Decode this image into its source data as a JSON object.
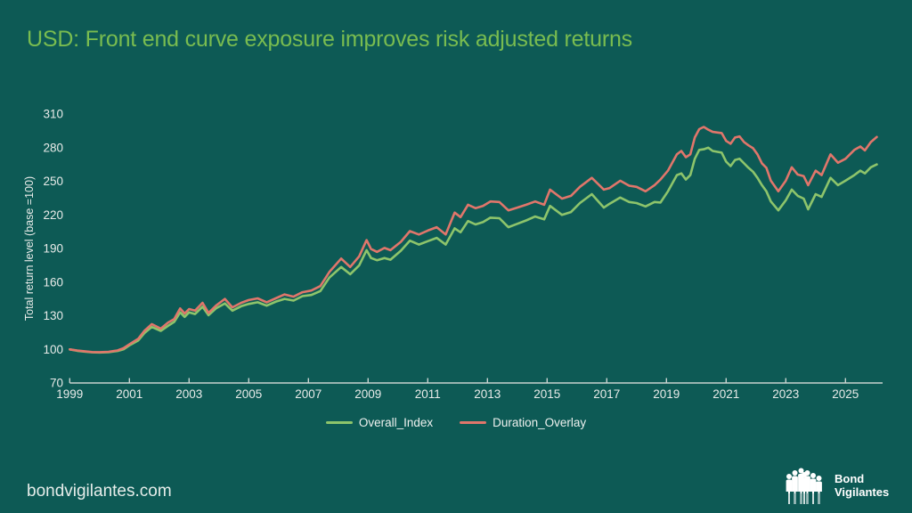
{
  "title": "USD: Front end curve exposure improves risk adjusted returns",
  "colors": {
    "background": "#0d5a55",
    "title": "#79bc50",
    "overall_index": "#8dc46b",
    "duration_overlay": "#e0766b",
    "axis_text": "#e8ebe9",
    "axis_line": "#c8d2cf",
    "logo": "#ffffff"
  },
  "footer": {
    "site": "bondvigilantes.com",
    "logo_icon": "people-crowd-icon",
    "logo_line1": "Bond",
    "logo_line2": "Vigilantes"
  },
  "chart_data": {
    "type": "line",
    "title": "",
    "xlabel": "",
    "ylabel": "Total return level (base =100)",
    "ylim": [
      70,
      310
    ],
    "xlim": [
      1999,
      2026.25
    ],
    "grid": false,
    "legend_position": "bottom",
    "yticks": [
      70,
      100,
      130,
      160,
      190,
      220,
      250,
      280,
      310
    ],
    "xticks": [
      1999,
      2001,
      2003,
      2005,
      2007,
      2009,
      2011,
      2013,
      2015,
      2017,
      2019,
      2021,
      2023,
      2025
    ],
    "x": [
      1999.0,
      1999.25,
      1999.5,
      1999.75,
      2000.0,
      2000.3,
      2000.6,
      2000.8,
      2001.0,
      2001.3,
      2001.5,
      2001.75,
      2002.05,
      2002.3,
      2002.5,
      2002.7,
      2002.85,
      2003.0,
      2003.2,
      2003.45,
      2003.65,
      2003.9,
      2004.2,
      2004.45,
      2004.75,
      2005.0,
      2005.3,
      2005.6,
      2005.9,
      2006.2,
      2006.5,
      2006.8,
      2007.1,
      2007.4,
      2007.7,
      2008.1,
      2008.4,
      2008.7,
      2008.95,
      2009.1,
      2009.3,
      2009.55,
      2009.75,
      2010.1,
      2010.4,
      2010.7,
      2011.0,
      2011.3,
      2011.6,
      2011.9,
      2012.1,
      2012.35,
      2012.6,
      2012.85,
      2013.1,
      2013.4,
      2013.7,
      2014.0,
      2014.3,
      2014.6,
      2014.9,
      2015.1,
      2015.5,
      2015.8,
      2016.1,
      2016.5,
      2016.9,
      2017.1,
      2017.45,
      2017.75,
      2018.0,
      2018.3,
      2018.6,
      2018.8,
      2019.05,
      2019.35,
      2019.5,
      2019.65,
      2019.8,
      2019.95,
      2020.1,
      2020.25,
      2020.4,
      2020.55,
      2020.85,
      2021.0,
      2021.15,
      2021.3,
      2021.45,
      2021.6,
      2021.75,
      2021.9,
      2022.05,
      2022.2,
      2022.35,
      2022.5,
      2022.75,
      2023.0,
      2023.2,
      2023.4,
      2023.6,
      2023.75,
      2024.0,
      2024.2,
      2024.5,
      2024.75,
      2025.0,
      2025.3,
      2025.5,
      2025.65,
      2025.85,
      2026.05
    ],
    "series": [
      {
        "name": "Overall_Index",
        "color": "#8dc46b",
        "values": [
          100,
          98.7,
          98,
          97.3,
          97.2,
          97.5,
          98.5,
          100,
          103.5,
          108,
          114.5,
          120,
          116.5,
          121,
          124.5,
          133,
          129,
          133,
          131.5,
          138,
          130.5,
          136.5,
          141,
          134.5,
          138.5,
          140.5,
          142,
          139,
          142.5,
          145,
          143.5,
          147.5,
          148.5,
          152,
          164,
          173.5,
          167,
          175,
          188.5,
          181.5,
          179.5,
          181.5,
          180,
          188,
          197,
          193.5,
          196.5,
          199.5,
          193.5,
          208,
          204.5,
          214.5,
          211.5,
          213.5,
          217.5,
          217,
          209,
          212,
          215,
          218.5,
          216,
          228,
          220,
          222.5,
          230.5,
          238.5,
          226.5,
          230,
          235.5,
          231.5,
          230.5,
          227.5,
          231.5,
          231,
          241,
          255.5,
          257,
          251.5,
          255.5,
          270,
          278,
          278.5,
          280,
          277,
          275.5,
          267.5,
          263.5,
          269,
          270,
          266,
          262,
          258.5,
          253,
          246.5,
          241,
          232,
          224,
          233,
          242.5,
          237,
          234.5,
          225,
          238.5,
          236,
          253,
          246.5,
          250.5,
          255.5,
          259.5,
          257,
          262.5,
          265
        ]
      },
      {
        "name": "Duration_Overlay",
        "color": "#e0766b",
        "values": [
          100,
          99,
          98.3,
          97.6,
          97.5,
          97.8,
          99,
          101,
          104.5,
          109.5,
          116.5,
          122.5,
          118.5,
          124,
          127,
          136.5,
          132,
          136,
          134.5,
          141.5,
          132.5,
          139,
          145,
          137.5,
          141.5,
          144,
          145.5,
          142,
          145.5,
          149,
          147,
          151,
          152.5,
          156.5,
          169,
          181,
          173.5,
          183,
          197.5,
          189.5,
          187,
          190.5,
          188.5,
          196,
          205.5,
          202.5,
          206,
          209,
          202.5,
          222,
          218,
          229,
          226,
          228,
          232,
          231.5,
          224,
          226.5,
          229,
          232,
          229,
          242.5,
          234.5,
          237,
          245,
          253,
          242.5,
          244,
          250.5,
          246,
          245,
          241,
          246.5,
          251.5,
          259.5,
          274,
          277,
          271.5,
          274,
          289,
          296.5,
          298.5,
          296,
          294,
          293,
          286,
          283.5,
          289,
          290,
          285,
          282,
          279.5,
          274,
          266,
          262,
          250.5,
          241,
          250.5,
          262.5,
          256,
          254.5,
          246.5,
          259.5,
          255.5,
          274,
          266.5,
          270,
          278,
          281,
          277.5,
          285,
          289.5
        ]
      }
    ]
  }
}
